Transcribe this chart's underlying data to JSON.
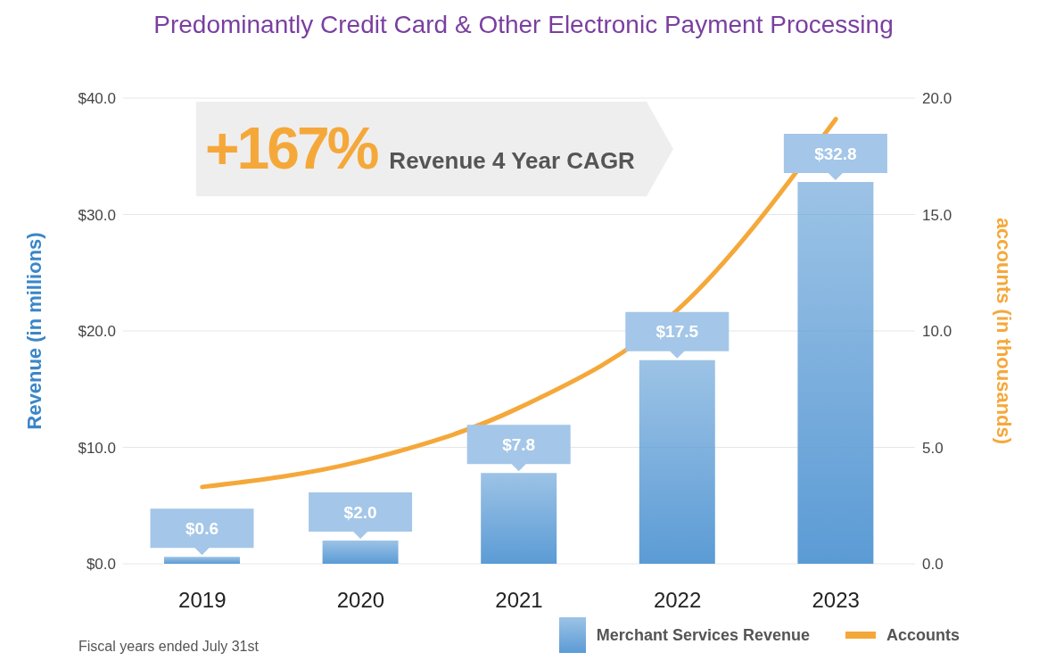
{
  "chart_data": {
    "type": "bar",
    "title": "Predominantly Credit Card & Other Electronic Payment Processing",
    "ylabel": "Revenue (in millions)",
    "y2label": "accounts (in thousands)",
    "categories": [
      "2019",
      "2020",
      "2021",
      "2022",
      "2023"
    ],
    "series": [
      {
        "name": "Merchant Services Revenue",
        "color": "#5b9bd5",
        "values": [
          0.6,
          2.0,
          7.8,
          17.5,
          32.8
        ],
        "value_labels": [
          "$0.6",
          "$2.0",
          "$7.8",
          "$17.5",
          "$32.8"
        ]
      },
      {
        "name": "Accounts",
        "type": "line",
        "axis": "y2",
        "color": "#f5a83a",
        "values": [
          3.3,
          4.4,
          6.7,
          10.9,
          19.1
        ]
      }
    ],
    "ylim": [
      0,
      40
    ],
    "yticks": [
      {
        "value": 0,
        "label": "$0.0"
      },
      {
        "value": 10,
        "label": "$10.0"
      },
      {
        "value": 20,
        "label": "$20.0"
      },
      {
        "value": 30,
        "label": "$30.0"
      },
      {
        "value": 40,
        "label": "$40.0"
      }
    ],
    "y2lim": [
      0,
      20
    ],
    "y2ticks": [
      {
        "value": 0,
        "label": "0.0"
      },
      {
        "value": 5,
        "label": "5.0"
      },
      {
        "value": 10,
        "label": "10.0"
      },
      {
        "value": 15,
        "label": "15.0"
      },
      {
        "value": 20,
        "label": "20.0"
      }
    ],
    "grid": "y",
    "legend": "bottom right",
    "marker": "none",
    "annotations": [
      "+167%",
      "Revenue 4 Year CAGR",
      "Fiscal years ended July 31st"
    ]
  }
}
